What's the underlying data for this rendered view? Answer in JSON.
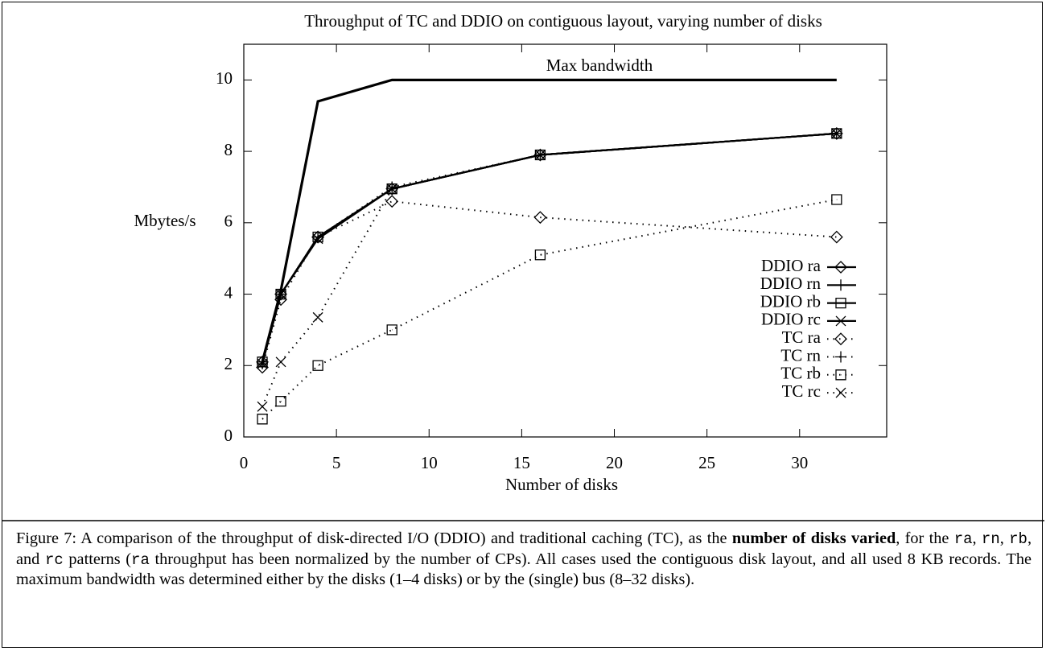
{
  "chart_data": {
    "type": "line",
    "title": "Throughput of TC and DDIO on contiguous layout, varying number of disks",
    "x_label": "Number of disks",
    "y_label": "Mbytes/s",
    "x": [
      1,
      2,
      4,
      8,
      16,
      32
    ],
    "xlim": [
      0,
      34.7
    ],
    "ylim": [
      0,
      11
    ],
    "xticks": [
      0,
      5,
      10,
      15,
      20,
      25,
      30
    ],
    "yticks": [
      0,
      2,
      4,
      6,
      8,
      10
    ],
    "max_bandwidth": {
      "label": "Max bandwidth",
      "values": [
        2.1,
        4.1,
        9.4,
        10,
        10,
        10
      ],
      "color": "#000000"
    },
    "legend": "lower right",
    "series": [
      {
        "name": "DDIO ra",
        "color": "#000000",
        "style": "solid",
        "marker": "diamond",
        "values": [
          2.1,
          4.0,
          5.6,
          6.95,
          7.9,
          8.5
        ]
      },
      {
        "name": "DDIO rn",
        "color": "#000000",
        "style": "solid",
        "marker": "plus",
        "values": [
          2.1,
          4.0,
          5.6,
          6.95,
          7.9,
          8.5
        ]
      },
      {
        "name": "DDIO rb",
        "color": "#000000",
        "style": "solid",
        "marker": "square",
        "values": [
          2.1,
          4.0,
          5.6,
          6.95,
          7.9,
          8.5
        ]
      },
      {
        "name": "DDIO rc",
        "color": "#000000",
        "style": "solid",
        "marker": "cross",
        "values": [
          2.05,
          4.0,
          5.55,
          6.95,
          7.9,
          8.5
        ]
      },
      {
        "name": "TC ra",
        "color": "#000000",
        "style": "dotted",
        "marker": "diamond",
        "values": [
          1.95,
          3.85,
          5.6,
          6.6,
          6.15,
          5.6
        ]
      },
      {
        "name": "TC rn",
        "color": "#000000",
        "style": "dotted",
        "marker": "plus",
        "values": [
          2.05,
          4.0,
          5.6,
          7.0,
          7.9,
          8.5
        ]
      },
      {
        "name": "TC rb",
        "color": "#000000",
        "style": "dotted",
        "marker": "square",
        "values": [
          0.5,
          1.0,
          2.0,
          3.0,
          5.1,
          6.65
        ]
      },
      {
        "name": "TC rc",
        "color": "#000000",
        "style": "dotted",
        "marker": "cross",
        "values": [
          0.85,
          2.1,
          3.35,
          6.95,
          7.9,
          8.5
        ]
      }
    ]
  },
  "caption": [
    {
      "style": "normal",
      "text": "Figure 7: A comparison of the throughput of disk-directed I/O (DDIO) and traditional caching (TC), as the "
    },
    {
      "style": "bold",
      "text": "number of disks varied"
    },
    {
      "style": "normal",
      "text": ", for the "
    },
    {
      "style": "code",
      "text": "ra"
    },
    {
      "style": "normal",
      "text": ", "
    },
    {
      "style": "code",
      "text": "rn"
    },
    {
      "style": "normal",
      "text": ", "
    },
    {
      "style": "code",
      "text": "rb"
    },
    {
      "style": "normal",
      "text": ", and "
    },
    {
      "style": "code",
      "text": "rc"
    },
    {
      "style": "normal",
      "text": " patterns ("
    },
    {
      "style": "code",
      "text": "ra"
    },
    {
      "style": "normal",
      "text": " throughput has been normalized by the number of CPs). All cases used the contiguous disk layout, and all used 8 KB records. The maximum bandwidth was determined either by the disks (1–4 disks) or by the (single) bus (8–32 disks)."
    }
  ]
}
